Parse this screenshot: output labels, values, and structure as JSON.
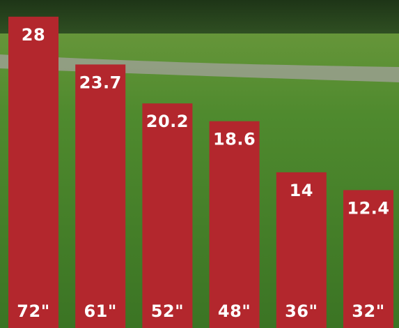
{
  "chart_data": {
    "type": "bar",
    "categories": [
      "72\"",
      "61\"",
      "52\"",
      "48\"",
      "36\"",
      "32\""
    ],
    "values": [
      28,
      23.7,
      20.2,
      18.6,
      14,
      12.4
    ],
    "value_labels": [
      "28",
      "23.7",
      "20.2",
      "18.6",
      "14",
      "12.4"
    ],
    "title": "",
    "xlabel": "",
    "ylabel": "",
    "ylim": [
      0,
      29.5
    ],
    "grid": false,
    "legend": "none",
    "bar_color": "#b3272d",
    "label_color": "#ffffff",
    "background": "photo of a mowed green lawn with trees and a paved path"
  }
}
